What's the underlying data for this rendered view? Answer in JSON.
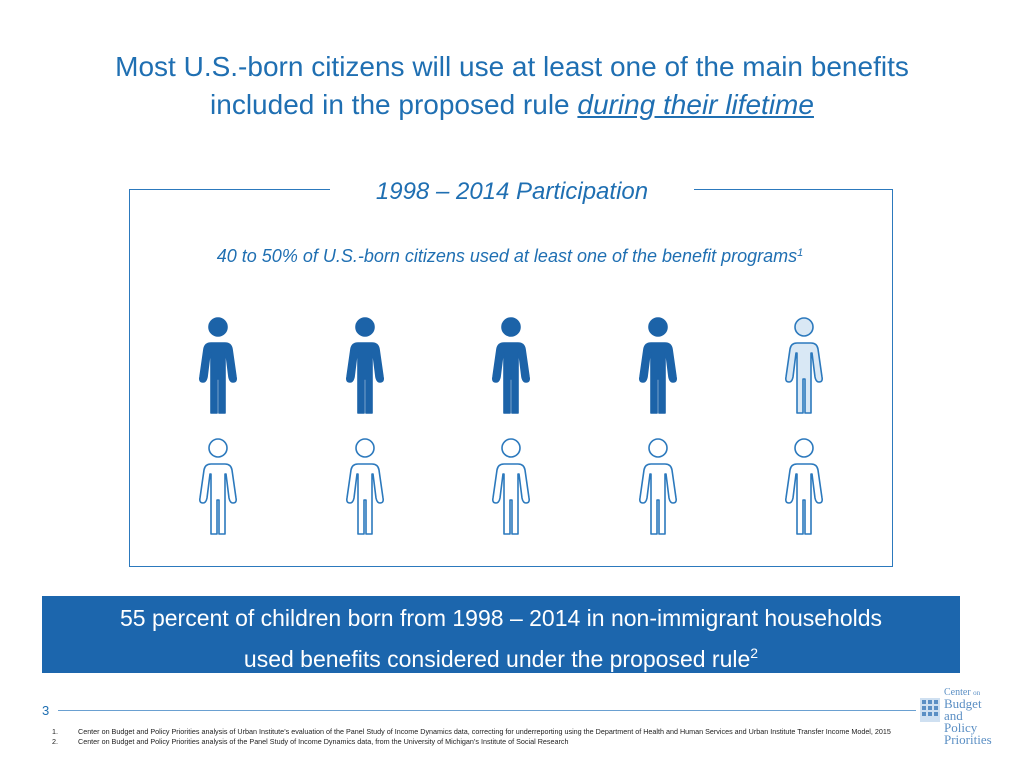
{
  "title": {
    "line1": "Most U.S.-born citizens will use at least one of the main benefits",
    "line2_prefix": "included in the proposed rule ",
    "line2_emphasis": "during their lifetime"
  },
  "participation_box": {
    "heading": "1998 – 2014 Participation",
    "subtitle": "40 to 50% of U.S.-born citizens used at least one of the benefit programs",
    "subtitle_sup": "1",
    "people_total": 10,
    "people_filled": 4,
    "people_half": 1,
    "colors": {
      "filled": "#1c63a8",
      "half": "#d9e8f5",
      "outline": "#2c79bd"
    }
  },
  "callout": {
    "line1": "55 percent of children born from 1998 – 2014  in non-immigrant households",
    "line2": "used benefits considered under the proposed rule",
    "sup": "2"
  },
  "footer": {
    "page_number": "3",
    "logo": {
      "line1": "Center",
      "line1_small": "on",
      "line2": "Budget",
      "line3": "and Policy",
      "line4": "Priorities"
    },
    "footnotes": [
      {
        "num": "1.",
        "text": "Center on Budget and Policy Priorities analysis of Urban Institute’s evaluation of the Panel Study of Income Dynamics data, correcting for underreporting using the Department of Health and Human Services and Urban Institute Transfer Income Model, 2015"
      },
      {
        "num": "2.",
        "text": "Center on Budget and Policy Priorities analysis of the Panel Study of Income Dynamics data, from the University of Michigan’s Institute of Social Research"
      }
    ]
  }
}
